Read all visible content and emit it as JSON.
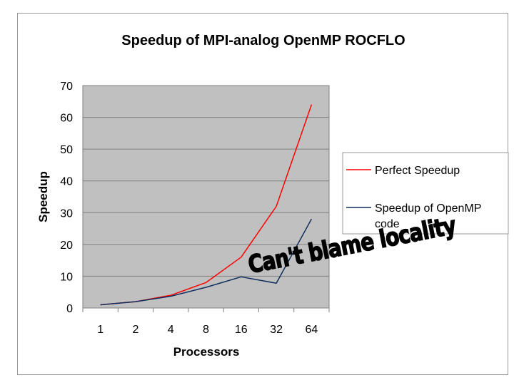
{
  "chart_data": {
    "type": "line",
    "title": "Speedup of MPI-analog OpenMP ROCFLO",
    "xlabel": "Processors",
    "ylabel": "Speedup",
    "categories": [
      "1",
      "2",
      "4",
      "8",
      "16",
      "32",
      "64"
    ],
    "ylim": [
      0,
      70
    ],
    "yticks": [
      0,
      10,
      20,
      30,
      40,
      50,
      60,
      70
    ],
    "grid": true,
    "legend_position": "right",
    "series": [
      {
        "name": "Perfect Speedup",
        "name_lines": [
          "Perfect Speedup"
        ],
        "color": "#ff0000",
        "values": [
          1,
          2,
          4,
          8,
          16,
          32,
          64
        ]
      },
      {
        "name": "Speedup of OpenMP code",
        "name_lines": [
          "Speedup of OpenMP",
          "code"
        ],
        "color": "#0f2d5c",
        "values": [
          1,
          2,
          3.7,
          6.5,
          9.8,
          7.8,
          28
        ]
      }
    ],
    "plot_background": "#c0c0c0",
    "annotation": "Can't blame locality"
  }
}
